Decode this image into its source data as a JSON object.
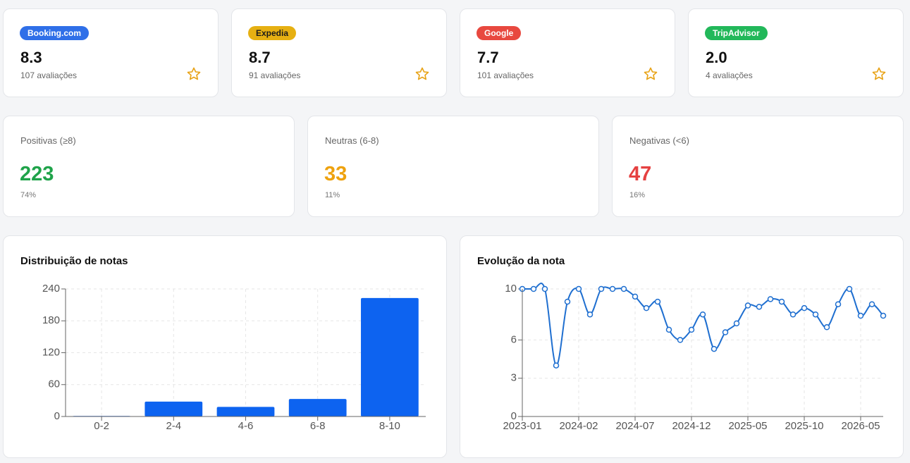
{
  "platforms": [
    {
      "name": "Booking.com",
      "score": "8.3",
      "reviews": "107 avaliações",
      "color": "#2f6fe8",
      "text_color": "#ffffff"
    },
    {
      "name": "Expedia",
      "score": "8.7",
      "reviews": "91 avaliações",
      "color": "#e6b012",
      "text_color": "#1a1a1a"
    },
    {
      "name": "Google",
      "score": "7.7",
      "reviews": "101 avaliações",
      "color": "#e8483f",
      "text_color": "#ffffff"
    },
    {
      "name": "TripAdvisor",
      "score": "2.0",
      "reviews": "4 avaliações",
      "color": "#22b85a",
      "text_color": "#ffffff"
    }
  ],
  "summary": [
    {
      "label": "Positivas (≥8)",
      "count": 223,
      "share": "74%",
      "color": "#1fa34a"
    },
    {
      "label": "Neutras (6-8)",
      "count": 33,
      "share": "11%",
      "color": "#eea20e"
    },
    {
      "label": "Negativas (<6)",
      "count": 47,
      "share": "16%",
      "color": "#e54141"
    }
  ],
  "chart_data": [
    {
      "type": "bar",
      "title": "Distribuição de notas",
      "categories": [
        "0-2",
        "2-4",
        "4-6",
        "6-8",
        "8-10"
      ],
      "values": [
        1,
        28,
        18,
        33,
        223
      ],
      "color": "#0d63f0",
      "ylim": [
        0,
        240
      ],
      "yticks": [
        0,
        60,
        120,
        180,
        240
      ],
      "grid": true
    },
    {
      "type": "line",
      "title": "Evolução da nota",
      "categories": [
        "2023-01",
        null,
        null,
        null,
        null,
        "2024-02",
        null,
        null,
        null,
        null,
        "2024-07",
        null,
        null,
        null,
        null,
        "2024-12",
        null,
        null,
        null,
        null,
        "2025-05",
        null,
        null,
        null,
        null,
        "2025-10",
        null,
        null,
        null,
        null,
        "2026-05",
        null,
        null
      ],
      "values": [
        10,
        10,
        10,
        4.0,
        9.0,
        10,
        8.0,
        10,
        10,
        10,
        9.4,
        8.5,
        9.0,
        6.8,
        6.0,
        6.8,
        8.0,
        5.3,
        6.6,
        7.3,
        8.7,
        8.6,
        9.2,
        9.0,
        8.0,
        8.5,
        8.0,
        7.0,
        8.8,
        10,
        7.9,
        8.8,
        7.9
      ],
      "color": "#1f6fd0",
      "ylim": [
        0,
        10
      ],
      "yticks": [
        0,
        3,
        6,
        10
      ],
      "grid": true
    }
  ]
}
